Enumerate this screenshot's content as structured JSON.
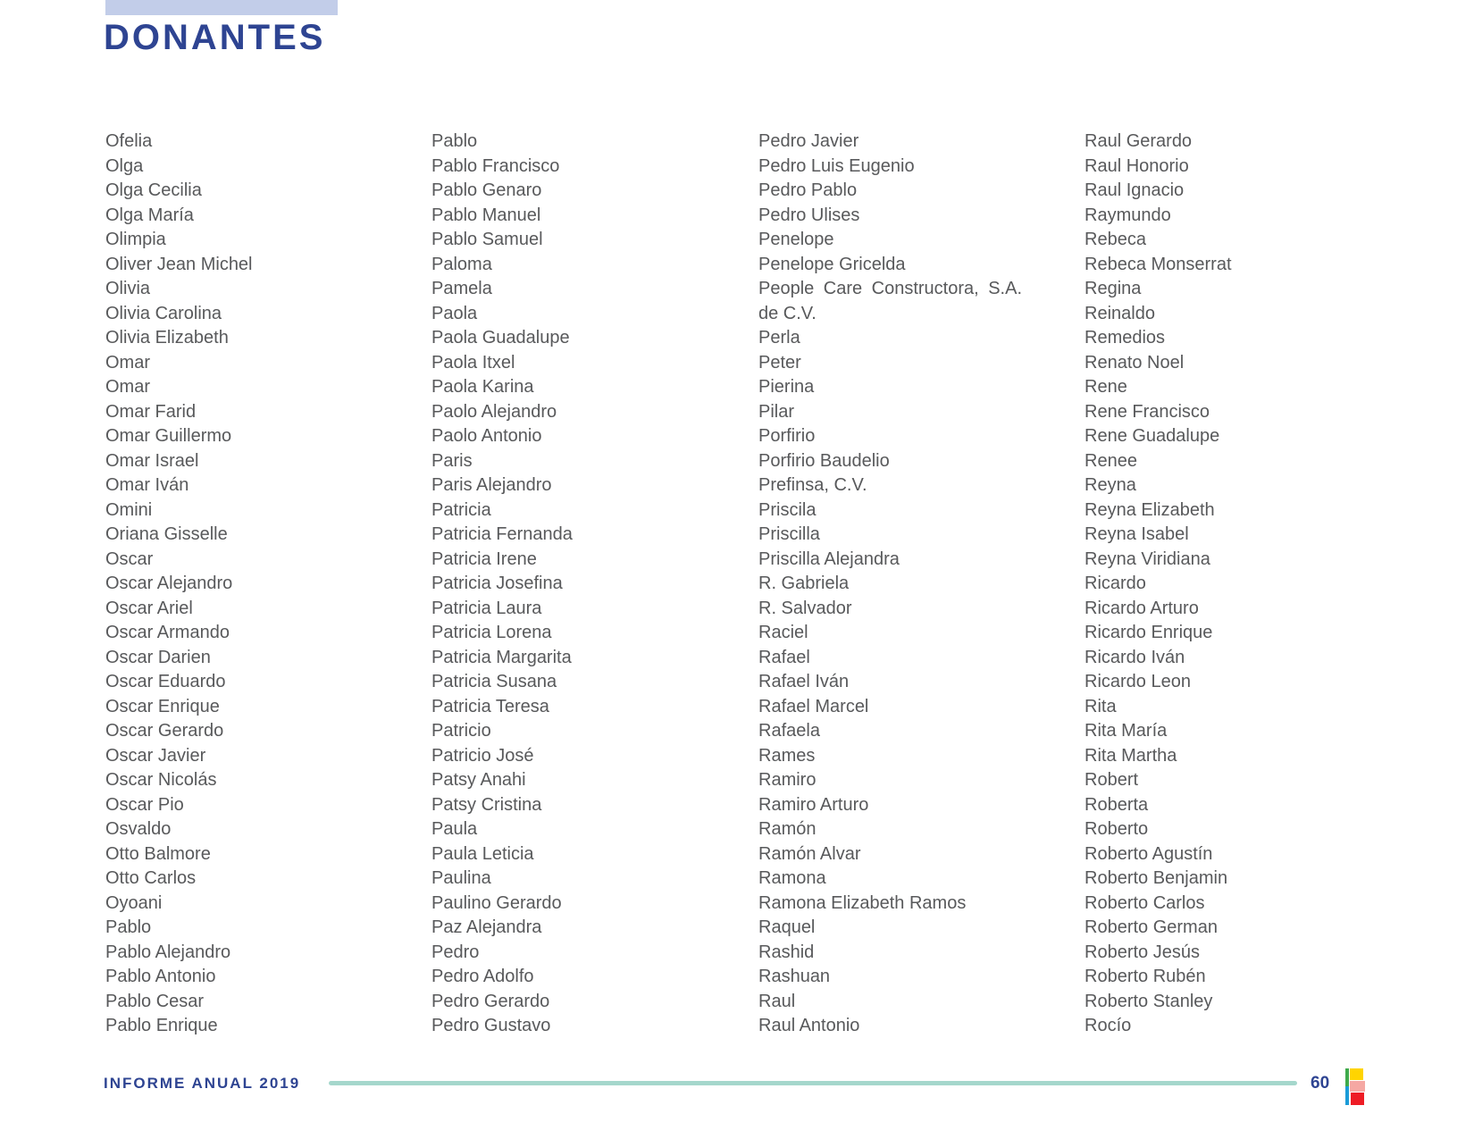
{
  "header": {
    "title": "DONANTES"
  },
  "donors": {
    "columns": [
      {
        "names": [
          "Ofelia",
          "Olga",
          "Olga Cecilia",
          "Olga María",
          "Olimpia",
          "Oliver Jean Michel",
          "Olivia",
          "Olivia Carolina",
          "Olivia Elizabeth",
          "Omar",
          "Omar",
          "Omar Farid",
          "Omar Guillermo",
          "Omar Israel",
          "Omar Iván",
          "Omini",
          "Oriana Gisselle",
          "Oscar",
          "Oscar Alejandro",
          "Oscar Ariel",
          "Oscar Armando",
          "Oscar Darien",
          "Oscar Eduardo",
          "Oscar Enrique",
          "Oscar Gerardo",
          "Oscar Javier",
          "Oscar Nicolás",
          "Oscar Pio",
          "Osvaldo",
          "Otto Balmore",
          "Otto Carlos",
          "Oyoani",
          "Pablo",
          "Pablo Alejandro",
          "Pablo Antonio",
          "Pablo Cesar",
          "Pablo Enrique"
        ]
      },
      {
        "names": [
          "Pablo",
          "Pablo Francisco",
          "Pablo Genaro",
          "Pablo Manuel",
          "Pablo Samuel",
          "Paloma",
          "Pamela",
          "Paola",
          "Paola Guadalupe",
          "Paola Itxel",
          "Paola Karina",
          "Paolo Alejandro",
          "Paolo Antonio",
          "Paris",
          "Paris Alejandro",
          "Patricia",
          "Patricia Fernanda",
          "Patricia Irene",
          "Patricia Josefina",
          "Patricia Laura",
          "Patricia Lorena",
          "Patricia Margarita",
          "Patricia Susana",
          "Patricia Teresa",
          "Patricio",
          "Patricio José",
          "Patsy Anahi",
          "Patsy Cristina",
          "Paula",
          "Paula Leticia",
          "Paulina",
          "Paulino Gerardo",
          "Paz Alejandra",
          "Pedro",
          "Pedro Adolfo",
          "Pedro Gerardo",
          "Pedro Gustavo"
        ]
      },
      {
        "names": [
          "Pedro Javier",
          "Pedro Luis Eugenio",
          "Pedro Pablo",
          "Pedro Ulises",
          "Penelope",
          "Penelope Gricelda",
          "People Care Constructora, S.A. de C.V.",
          "Perla",
          "Peter",
          "Pierina",
          "Pilar",
          "Porfirio",
          "Porfirio Baudelio",
          "Prefinsa, C.V.",
          "Priscila",
          "Priscilla",
          "Priscilla Alejandra",
          "R. Gabriela",
          "R. Salvador",
          "Raciel",
          "Rafael",
          "Rafael Iván",
          "Rafael Marcel",
          "Rafaela",
          "Rames",
          "Ramiro",
          "Ramiro Arturo",
          "Ramón",
          "Ramón Alvar",
          "Ramona",
          "Ramona Elizabeth Ramos",
          "Raquel",
          "Rashid",
          "Rashuan",
          "Raul",
          "Raul Antonio"
        ]
      },
      {
        "names": [
          "Raul Gerardo",
          "Raul Honorio",
          "Raul Ignacio",
          "Raymundo",
          "Rebeca",
          "Rebeca Monserrat",
          "Regina",
          "Reinaldo",
          "Remedios",
          "Renato Noel",
          "Rene",
          "Rene Francisco",
          "Rene Guadalupe",
          "Renee",
          "Reyna",
          "Reyna Elizabeth",
          "Reyna Isabel",
          "Reyna Viridiana",
          "Ricardo",
          "Ricardo Arturo",
          "Ricardo Enrique",
          "Ricardo Iván",
          "Ricardo Leon",
          "Rita",
          "Rita María",
          "Rita Martha",
          "Robert",
          "Roberta",
          "Roberto",
          "Roberto Agustín",
          "Roberto Benjamin",
          "Roberto Carlos",
          "Roberto German",
          "Roberto Jesús",
          "Roberto Rubén",
          "Roberto Stanley",
          "Rocío"
        ]
      }
    ]
  },
  "footer": {
    "left_label": "INFORME ANUAL 2019",
    "page_number": "60"
  },
  "icons": {
    "footer_logo": "organization-logo-icon"
  },
  "colors": {
    "accent_blue": "#2e4492",
    "header_bar": "#c2cde9",
    "name_text": "#58595b",
    "divider_teal": "#a5d7cc",
    "logo": {
      "green": "#3faa4b",
      "yellow": "#ffd400",
      "pink": "#f5a8a3",
      "blue": "#1b9cd8",
      "red": "#ee1c25"
    }
  }
}
